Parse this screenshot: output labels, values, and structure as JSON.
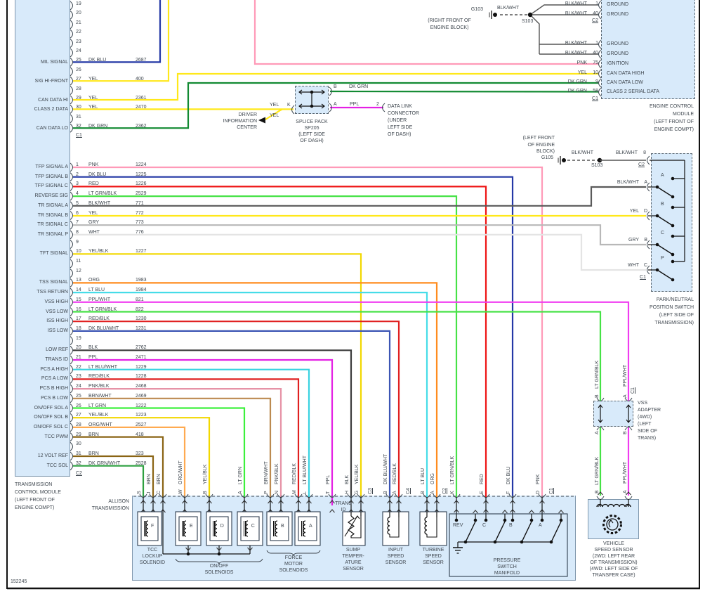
{
  "diagram_id": "152245",
  "wire_colors": {
    "PNK": "#ff9ab8",
    "DK BLU": "#2438a6",
    "RED": "#ee1414",
    "LT GRN": "#3cf03c",
    "LT GRN/BLK": "#46e246",
    "BLK/WHT": "#5a5a5a",
    "YEL": "#ffe81a",
    "GRY": "#b8b8b8",
    "WHT": "#e4e4e4",
    "YEL/BLK": "#f2d800",
    "ORG": "#ff8c1f",
    "LT BLU": "#46dce8",
    "PPL/WHT": "#f03cf0",
    "RED/BLK": "#e02020",
    "DK BLU/WHT": "#3c55b4",
    "BLK": "#3c3c3c",
    "PPL": "#e420e4",
    "LT BLU/WHT": "#38d2e0",
    "PNK/BLK": "#e692a6",
    "BRN/WHT": "#bc8a50",
    "ORG/WHT": "#ffaa50",
    "BRN": "#8a6414",
    "DK GRN/WHT": "#2ea040",
    "DK GRN": "#128a32"
  },
  "tcm": {
    "label": [
      "TRANSMISSION",
      "CONTROL MODULE",
      "(LEFT FRONT OF",
      "ENGINE COMPT)"
    ],
    "c1_connector": "C1",
    "c2_connector": "C2",
    "c1_pins": [
      {
        "pin": "19"
      },
      {
        "pin": "20"
      },
      {
        "pin": "21"
      },
      {
        "pin": "22"
      },
      {
        "pin": "23"
      },
      {
        "pin": "24"
      },
      {
        "pin": "25",
        "wire": "DK BLU",
        "circuit": "2687",
        "signal": "MIL SIGNAL"
      },
      {
        "pin": "26"
      },
      {
        "pin": "27",
        "wire": "YEL",
        "circuit": "400",
        "signal": "SIG HI-FRONT"
      },
      {
        "pin": "28"
      },
      {
        "pin": "29",
        "wire": "YEL",
        "circuit": "2361",
        "signal": "CAN DATA HI"
      },
      {
        "pin": "30",
        "wire": "YEL",
        "circuit": "2470",
        "signal": "CLASS 2 DATA"
      },
      {
        "pin": "31"
      },
      {
        "pin": "32",
        "wire": "DK GRN",
        "circuit": "2362",
        "signal": "CAN DATA LO"
      }
    ],
    "c2_pins": [
      {
        "pin": "1",
        "wire": "PNK",
        "circuit": "1224",
        "signal": "TFP SIGNAL A"
      },
      {
        "pin": "2",
        "wire": "DK BLU",
        "circuit": "1225",
        "signal": "TFP SIGNAL B"
      },
      {
        "pin": "3",
        "wire": "RED",
        "circuit": "1226",
        "signal": "TFP SIGNAL C"
      },
      {
        "pin": "4",
        "wire": "LT GRN/BLK",
        "circuit": "2529",
        "signal": "REVERSE SIG"
      },
      {
        "pin": "5",
        "wire": "BLK/WHT",
        "circuit": "771",
        "signal": "TR SIGNAL A"
      },
      {
        "pin": "6",
        "wire": "YEL",
        "circuit": "772",
        "signal": "TR SIGNAL B"
      },
      {
        "pin": "7",
        "wire": "GRY",
        "circuit": "773",
        "signal": "TR SIGNAL C"
      },
      {
        "pin": "8",
        "wire": "WHT",
        "circuit": "776",
        "signal": "TR SIGNAL P"
      },
      {
        "pin": "9"
      },
      {
        "pin": "10",
        "wire": "YEL/BLK",
        "circuit": "1227",
        "signal": "TFT SIGNAL"
      },
      {
        "pin": "11"
      },
      {
        "pin": "12"
      },
      {
        "pin": "13",
        "wire": "ORG",
        "circuit": "1983",
        "signal": "TSS SIGNAL"
      },
      {
        "pin": "14",
        "wire": "LT BLU",
        "circuit": "1984",
        "signal": "TSS RETURN"
      },
      {
        "pin": "15",
        "wire": "PPL/WHT",
        "circuit": "821",
        "signal": "VSS HIGH"
      },
      {
        "pin": "16",
        "wire": "LT GRN/BLK",
        "circuit": "822",
        "signal": "VSS LOW"
      },
      {
        "pin": "17",
        "wire": "RED/BLK",
        "circuit": "1230",
        "signal": "ISS HIGH"
      },
      {
        "pin": "18",
        "wire": "DK BLU/WHT",
        "circuit": "1231",
        "signal": "ISS LOW"
      },
      {
        "pin": "19"
      },
      {
        "pin": "20",
        "wire": "BLK",
        "circuit": "2762",
        "signal": "LOW REF"
      },
      {
        "pin": "21",
        "wire": "PPL",
        "circuit": "2471",
        "signal": "TRANS ID"
      },
      {
        "pin": "22",
        "wire": "LT BLU/WHT",
        "circuit": "1229",
        "signal": "PCS A HIGH"
      },
      {
        "pin": "23",
        "wire": "RED/BLK",
        "circuit": "1228",
        "signal": "PCS A LOW"
      },
      {
        "pin": "24",
        "wire": "PNK/BLK",
        "circuit": "2468",
        "signal": "PCS B HIGH"
      },
      {
        "pin": "25",
        "wire": "BRN/WHT",
        "circuit": "2469",
        "signal": "PCS B LOW"
      },
      {
        "pin": "26",
        "wire": "LT GRN",
        "circuit": "1222",
        "signal": "ON/OFF SOL A"
      },
      {
        "pin": "27",
        "wire": "YEL/BLK",
        "circuit": "1223",
        "signal": "ON/OFF SOL B"
      },
      {
        "pin": "28",
        "wire": "ORG/WHT",
        "circuit": "2527",
        "signal": "ON/OFF SOL C"
      },
      {
        "pin": "29",
        "wire": "BRN",
        "circuit": "418",
        "signal": "TCC PWM"
      },
      {
        "pin": "30"
      },
      {
        "pin": "31",
        "wire": "BRN",
        "circuit": "323",
        "signal": "12 VOLT REF"
      },
      {
        "pin": "32",
        "wire": "DK GRN/WHT",
        "circuit": "2528",
        "signal": "TCC SOL"
      }
    ]
  },
  "ecm": {
    "label": [
      "ENGINE CONTROL",
      "MODULE",
      "(LEFT FRONT OF",
      "ENGINE COMPT)"
    ],
    "conns": [
      "C2",
      "C1"
    ],
    "pins": [
      {
        "wire": "BLK/WHT",
        "pin": "1",
        "label": "GROUND"
      },
      {
        "wire": "BLK/WHT",
        "pin": "40",
        "label": "GROUND"
      },
      {
        "wire": "BLK/WHT",
        "pin": "1",
        "label": "GROUND"
      },
      {
        "wire": "BLK/WHT",
        "pin": "40",
        "label": "GROUND"
      },
      {
        "wire": "PNK",
        "pin": "75",
        "label": "IGNITION"
      },
      {
        "wire": "YEL",
        "pin": "10",
        "label": "CAN DATA HIGH"
      },
      {
        "wire": "DK GRN",
        "pin": "9",
        "label": "CAN DATA LOW"
      },
      {
        "wire": "DK GRN",
        "pin": "58",
        "label": "CLASS 2 SERIAL DATA"
      }
    ]
  },
  "g103": {
    "name": "G103",
    "wire": "BLK/WHT",
    "splice": "S103",
    "loc": [
      "(RIGHT FRONT OF",
      "ENGINE BLOCK)"
    ]
  },
  "g105": {
    "name": "G105",
    "wire": "BLK/WHT",
    "splice": "S103",
    "loc": [
      "(LEFT FRONT",
      "OF ENGINE",
      "BLOCK)"
    ]
  },
  "splice": {
    "k": "K",
    "b": "B",
    "a": "A",
    "yel": "YEL",
    "dkgrn": "DK GRN",
    "ppl": "PPL",
    "pin2": "2",
    "label": [
      "SPLICE PACK",
      "SP205",
      "(LEFT SIDE",
      "OF DASH)"
    ]
  },
  "dlc": {
    "label": [
      "DATA LINK",
      "CONNECTOR",
      "(UNDER",
      "LEFT SIDE",
      "OF DASH)"
    ]
  },
  "dic": {
    "label": [
      "DRIVER",
      "INFORMATION",
      "CENTER"
    ]
  },
  "pn_switch": {
    "top_wire": "BLK/WHT",
    "top_pin": "8",
    "top_conn": "C2",
    "rows": [
      {
        "wire": "BLK/WHT",
        "pin": "A"
      },
      {
        "wire": "YEL",
        "pin": "D"
      },
      {
        "wire": "GRY",
        "pin": "B"
      },
      {
        "wire": "WHT",
        "pin": "C"
      }
    ],
    "bottom_conn": "C1",
    "units": [
      "A",
      "B",
      "C",
      "P"
    ],
    "label": [
      "PARK/NEUTRAL",
      "POSITION SWITCH",
      "(LEFT SIDE OF",
      "TRANSMISSION)"
    ]
  },
  "vss_adapter": {
    "top_pins": [
      "B",
      "A"
    ],
    "top_conn": "C1",
    "bottom_pins": [
      "A",
      "B"
    ],
    "wires": [
      "LT GRN/BLK",
      "PPL/WHT"
    ],
    "label": [
      "VSS",
      "ADAPTER",
      "(4WD)",
      "(LEFT",
      "SIDE OF",
      "TRANS)"
    ]
  },
  "vss": {
    "pins": [
      "B",
      "A"
    ],
    "label": [
      "VEHICLE",
      "SPEED SENSOR",
      "(2WD: LEFT REAR",
      "OF TRANSMISSION)",
      "(4WD: LEFT SIDE OF",
      "TRANSFER CASE)"
    ]
  },
  "transmission": {
    "name": [
      "ALLISON",
      "TRANSMISSION"
    ],
    "trans_id": [
      "TRANS",
      "ID"
    ],
    "pins": [
      {
        "pin": "S"
      },
      {
        "pin": "J",
        "wire": "BRN"
      },
      {
        "pin": "C",
        "wire": "BRN"
      },
      {
        "pin": "W",
        "wire": "ORG/WHT"
      },
      {
        "pin": "B",
        "wire": "YEL/BLK"
      },
      {
        "pin": "A",
        "wire": "LT GRN"
      },
      {
        "pin": "P",
        "wire": "BRN/WHT"
      },
      {
        "pin": "N",
        "wire": "PNK/BLK"
      },
      {
        "pin": "M",
        "wire": "RED/BLK"
      },
      {
        "pin": "L",
        "wire": "LT BLU/WHT"
      },
      {
        "pin": "T",
        "wire": "PPL"
      },
      {
        "pin": "H",
        "wire": "BLK"
      },
      {
        "pin": "G",
        "wire": "YEL/BLK"
      },
      {
        "conn": "C3"
      },
      {
        "pin": "B",
        "wire": "DK BLU/WHT"
      },
      {
        "pin": "A",
        "wire": "RED/BLK"
      },
      {
        "conn": "C4"
      },
      {
        "pin": "B",
        "wire": "LT BLU"
      },
      {
        "pin": "A",
        "wire": "ORG"
      },
      {
        "conn": "C2"
      },
      {
        "pin": "K",
        "wire": "LT GRN/BLK"
      },
      {
        "pin": "E",
        "wire": "RED"
      },
      {
        "pin": "F",
        "wire": "DK BLU"
      },
      {
        "pin": "D",
        "wire": "PNK"
      },
      {
        "conn": "C1"
      }
    ],
    "components": {
      "tcc": {
        "letter": "F",
        "label": [
          "TCC",
          "LOCKUP",
          "SOLENOID"
        ]
      },
      "onoff": {
        "letters": [
          "E",
          "D",
          "C"
        ],
        "label": [
          "ON/OFF",
          "SOLENOIDS"
        ]
      },
      "force": {
        "letters": [
          "B",
          "A"
        ],
        "label": [
          "FORCE",
          "MOTOR",
          "SOLENOIDS"
        ]
      },
      "sump": {
        "label": [
          "SUMP",
          "TEMPER-",
          "ATURE",
          "SENSOR"
        ]
      },
      "input": {
        "label": [
          "INPUT",
          "SPEED",
          "SENSOR"
        ]
      },
      "turbine": {
        "label": [
          "TURBINE",
          "SPEED",
          "SENSOR"
        ]
      },
      "pressure": {
        "switches": [
          "REV",
          "C",
          "B",
          "A"
        ],
        "label": [
          "PRESSURE",
          "SWITCH",
          "MANIFOLD"
        ]
      }
    }
  }
}
